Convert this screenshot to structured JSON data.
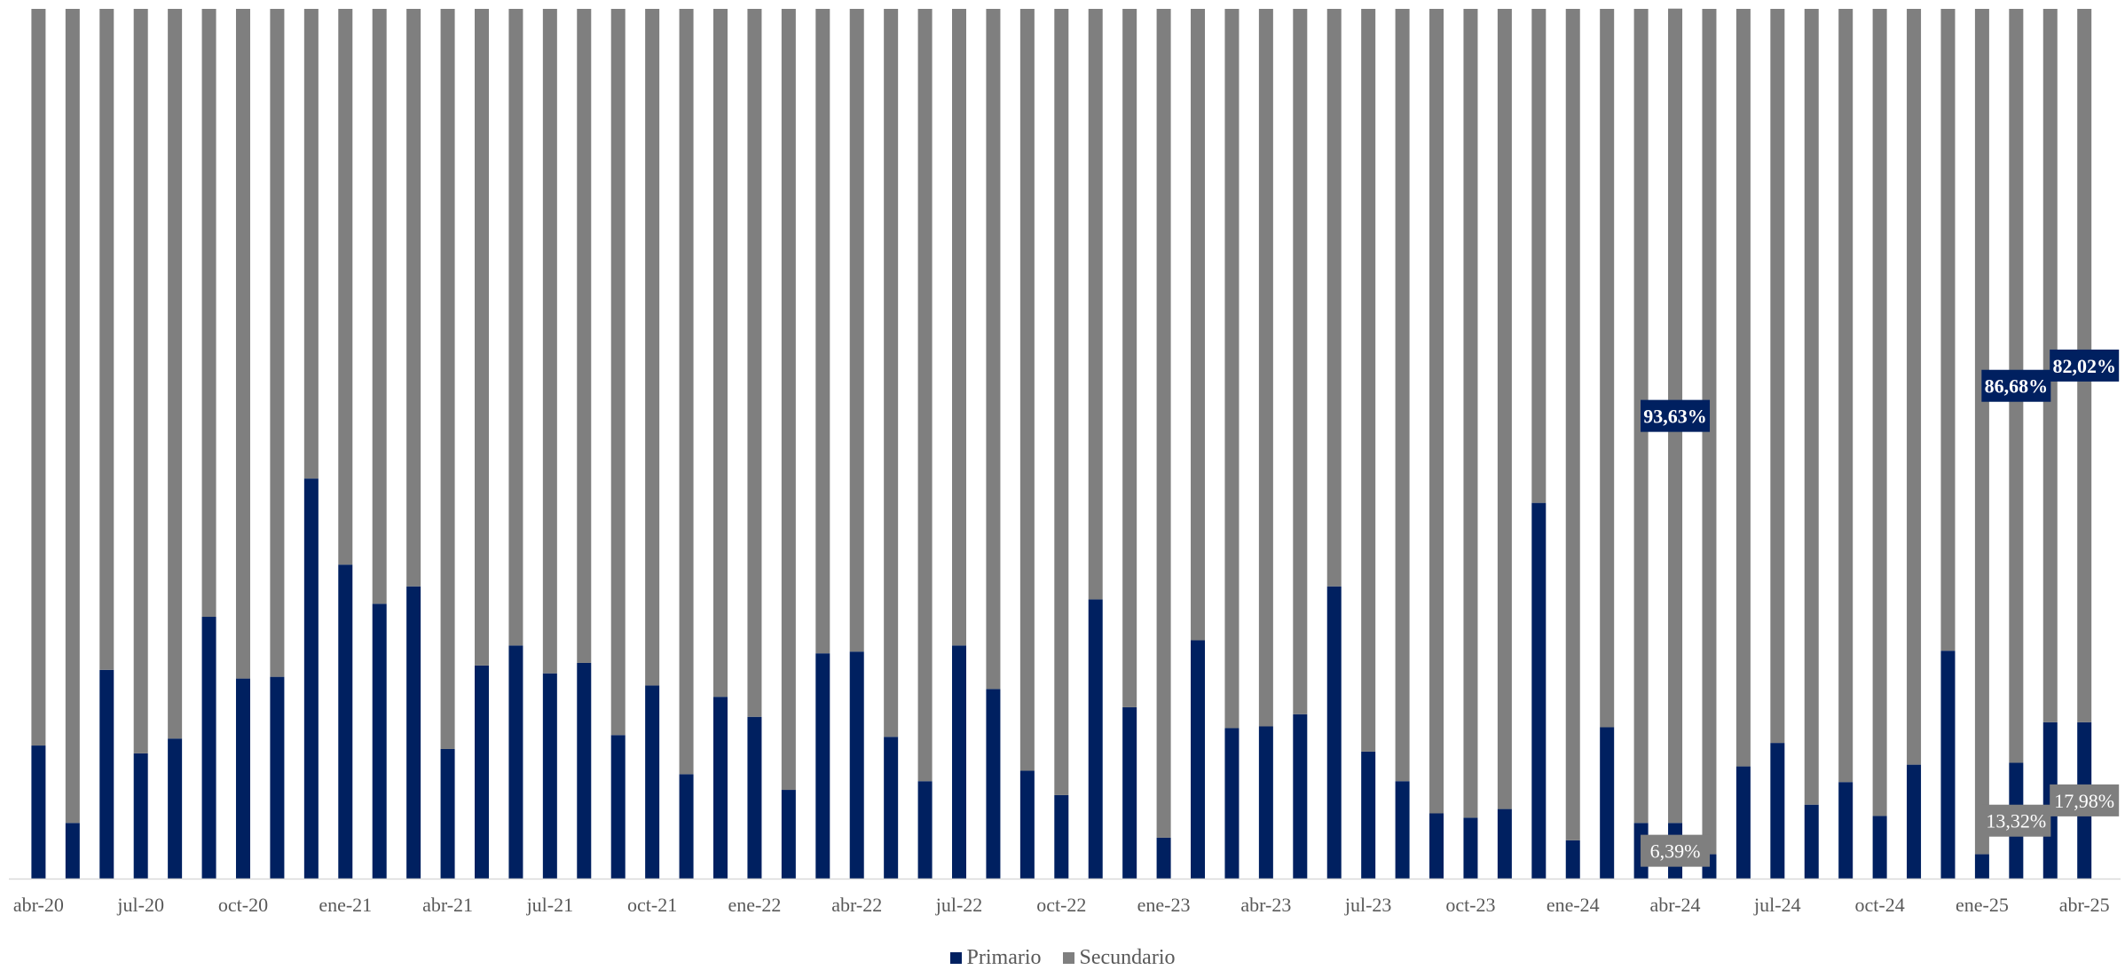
{
  "chart_data": {
    "type": "bar",
    "stacked": true,
    "percent_stacked": true,
    "x": [
      "abr-20",
      "may-20",
      "jun-20",
      "jul-20",
      "ago-20",
      "sep-20",
      "oct-20",
      "nov-20",
      "dic-20",
      "ene-21",
      "feb-21",
      "mar-21",
      "abr-21",
      "may-21",
      "jun-21",
      "jul-21",
      "ago-21",
      "sep-21",
      "oct-21",
      "nov-21",
      "dic-21",
      "ene-22",
      "feb-22",
      "mar-22",
      "abr-22",
      "may-22",
      "jun-22",
      "jul-22",
      "ago-22",
      "sep-22",
      "oct-22",
      "nov-22",
      "dic-22",
      "ene-23",
      "feb-23",
      "mar-23",
      "abr-23",
      "may-23",
      "jun-23",
      "jul-23",
      "ago-23",
      "sep-23",
      "oct-23",
      "nov-23",
      "dic-23",
      "ene-24",
      "feb-24",
      "mar-24",
      "abr-24",
      "may-24",
      "jun-24",
      "jul-24",
      "ago-24",
      "sep-24",
      "oct-24",
      "nov-24",
      "dic-24",
      "ene-25",
      "feb-25",
      "mar-25",
      "abr-25"
    ],
    "tick_labels": [
      "abr-20",
      "jul-20",
      "oct-20",
      "ene-21",
      "abr-21",
      "jul-21",
      "oct-21",
      "ene-22",
      "abr-22",
      "jul-22",
      "oct-22",
      "ene-23",
      "abr-23",
      "jul-23",
      "oct-23",
      "ene-24",
      "abr-24",
      "jul-24",
      "oct-24",
      "ene-25",
      "abr-25"
    ],
    "series": [
      {
        "name": "Primario",
        "color": "#002060",
        "values": [
          15.3,
          6.4,
          24.0,
          14.4,
          16.1,
          30.1,
          23.0,
          23.2,
          46.0,
          36.1,
          31.6,
          33.6,
          14.9,
          24.5,
          26.8,
          23.6,
          24.8,
          16.5,
          22.2,
          12.0,
          20.9,
          18.6,
          10.2,
          25.9,
          26.1,
          16.3,
          11.2,
          26.8,
          21.8,
          12.4,
          9.6,
          32.1,
          19.7,
          4.7,
          27.4,
          17.3,
          17.5,
          18.9,
          33.6,
          14.6,
          11.2,
          7.5,
          7.0,
          8.0,
          43.2,
          4.4,
          17.4,
          6.4,
          6.4,
          2.8,
          12.9,
          15.6,
          8.5,
          11.1,
          7.2,
          13.1,
          26.2,
          2.8,
          13.32,
          17.98,
          17.98
        ]
      },
      {
        "name": "Secundario",
        "color": "#7f7f7f",
        "values": [
          84.7,
          93.6,
          76.0,
          85.6,
          83.9,
          69.9,
          77.0,
          76.8,
          54.0,
          63.9,
          68.4,
          66.4,
          85.1,
          75.5,
          73.2,
          76.4,
          75.2,
          83.5,
          77.8,
          88.0,
          79.1,
          81.4,
          89.8,
          74.1,
          73.9,
          83.7,
          88.8,
          73.2,
          78.2,
          87.6,
          90.4,
          67.9,
          80.3,
          95.3,
          72.6,
          82.7,
          82.5,
          81.1,
          66.4,
          85.4,
          88.8,
          92.5,
          93.0,
          92.0,
          56.8,
          95.6,
          82.6,
          93.6,
          93.63,
          97.2,
          87.1,
          84.4,
          91.5,
          88.9,
          92.8,
          86.9,
          73.8,
          97.2,
          86.68,
          82.02,
          82.02
        ]
      }
    ],
    "ylim": [
      0,
      100
    ],
    "data_labels": [
      {
        "series": "Secundario",
        "x": "abr-24",
        "text": "93,63%"
      },
      {
        "series": "Primario",
        "x": "abr-24",
        "text": "6,39%"
      },
      {
        "series": "Secundario",
        "x": "feb-25",
        "text": "86,68%"
      },
      {
        "series": "Primario",
        "x": "feb-25",
        "text": "13,32%"
      },
      {
        "series": "Secundario",
        "x": "abr-25",
        "text": "82,02%"
      },
      {
        "series": "Primario",
        "x": "abr-25",
        "text": "17,98%"
      }
    ],
    "legend": {
      "position": "bottom",
      "items": [
        "Primario",
        "Secundario"
      ]
    },
    "grid": false
  }
}
